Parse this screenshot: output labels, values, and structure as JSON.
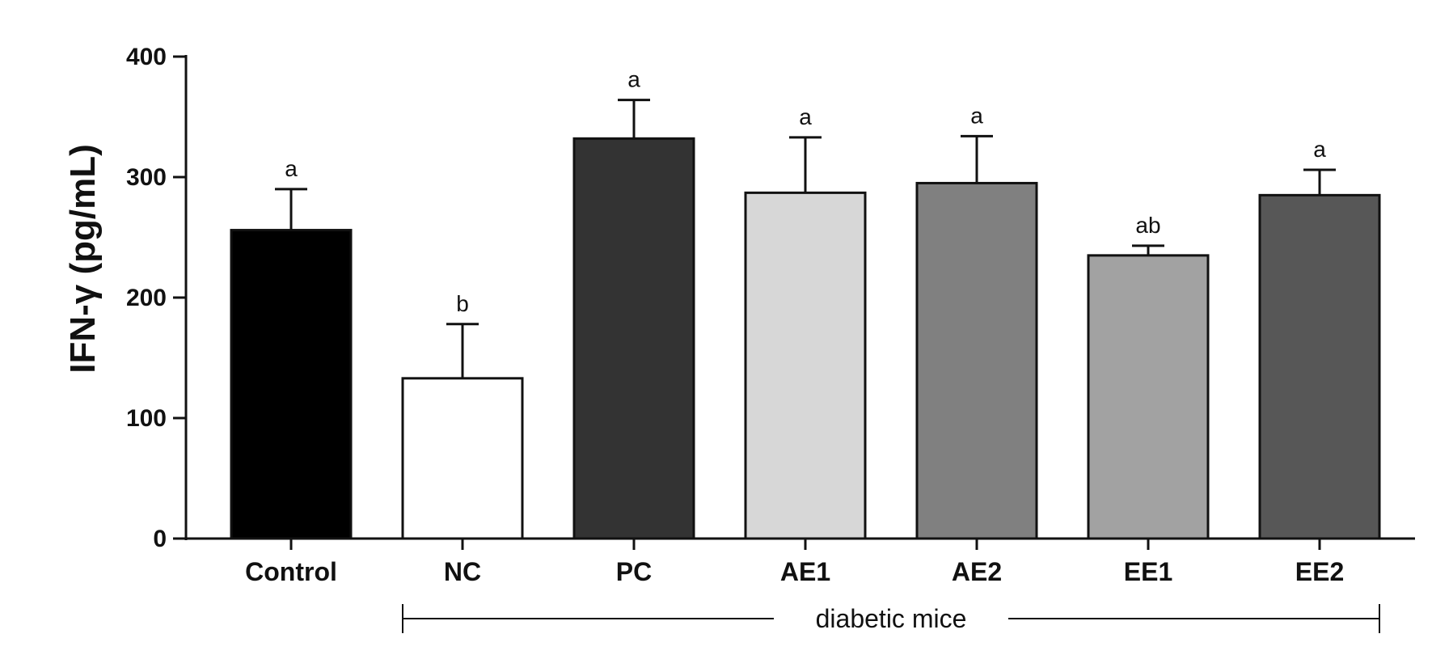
{
  "chart_data": {
    "type": "bar",
    "ylabel": "IFN-γ (pg/mL)",
    "xlabel": "",
    "ylim": [
      0,
      400
    ],
    "yticks": [
      0,
      100,
      200,
      300,
      400
    ],
    "categories": [
      "Control",
      "NC",
      "PC",
      "AE1",
      "AE2",
      "EE1",
      "EE2"
    ],
    "values": [
      256,
      133,
      332,
      287,
      295,
      235,
      285
    ],
    "errors": [
      34,
      45,
      32,
      46,
      39,
      8,
      21
    ],
    "significance": [
      "a",
      "b",
      "a",
      "a",
      "a",
      "ab",
      "a"
    ],
    "colors": [
      "#000000",
      "#ffffff",
      "#333333",
      "#d7d7d7",
      "#808080",
      "#a2a2a2",
      "#575757"
    ],
    "group_bracket": {
      "label": "diabetic mice",
      "from": "NC",
      "to": "EE2"
    },
    "grid": false
  }
}
